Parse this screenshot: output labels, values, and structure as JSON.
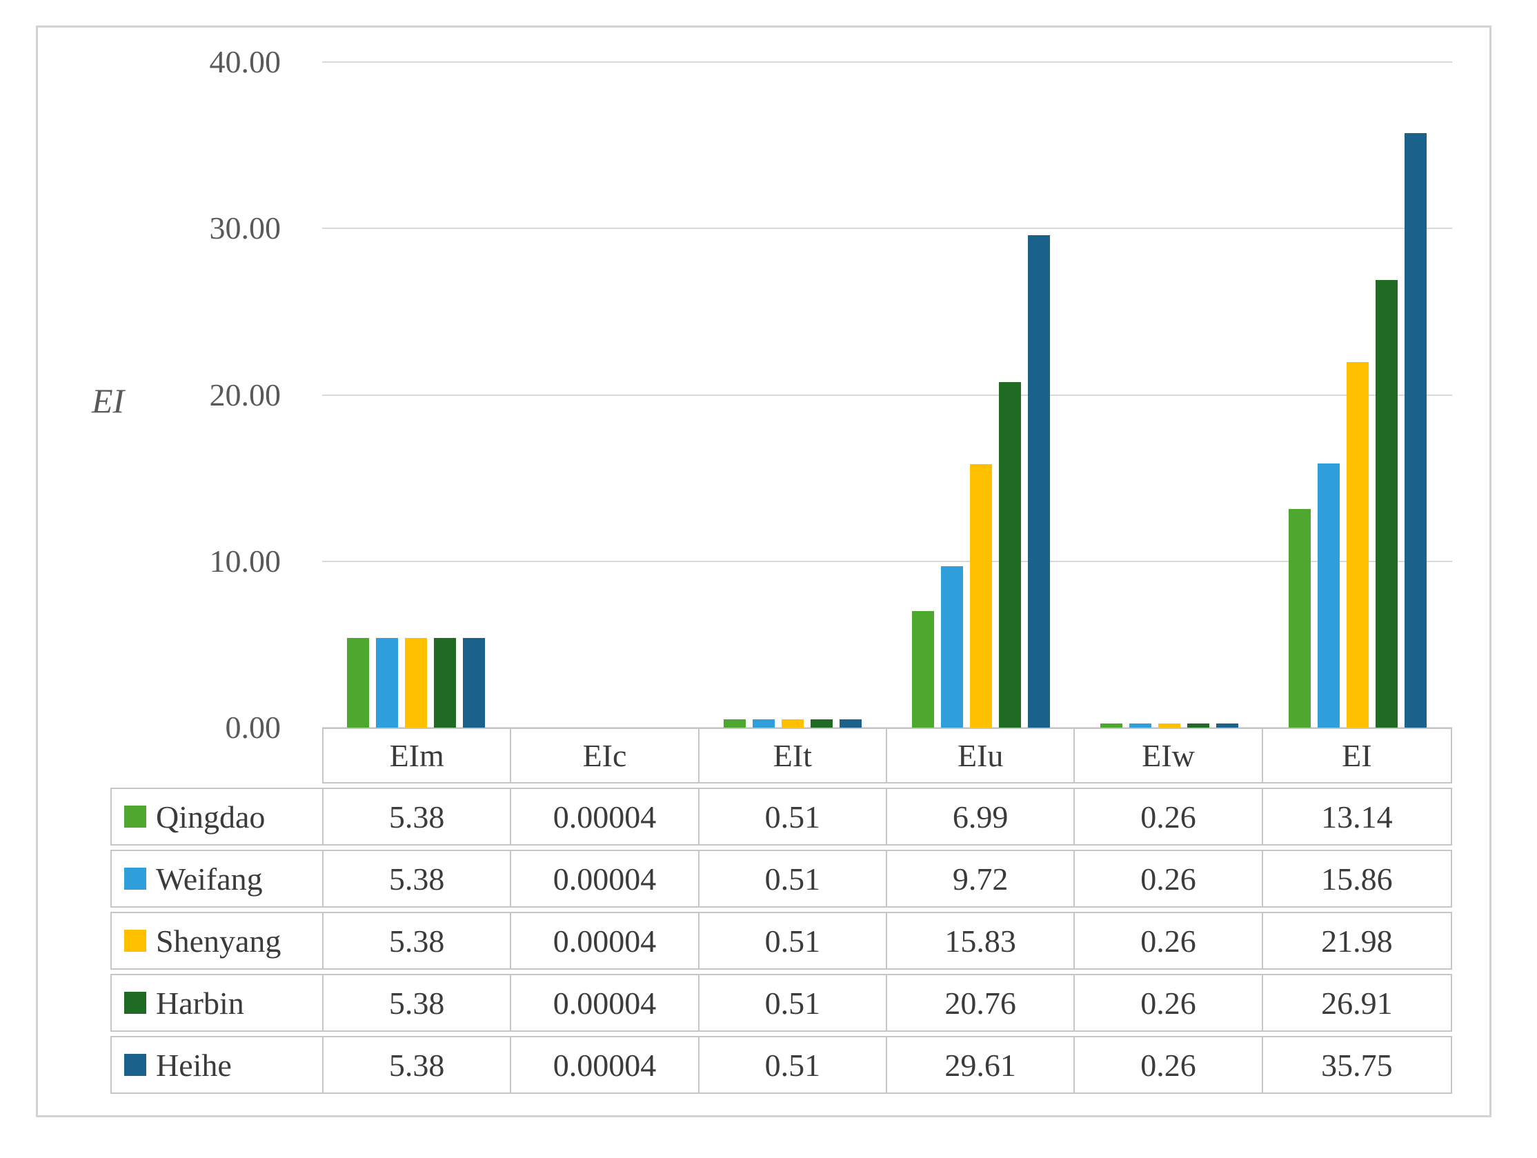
{
  "figure": {
    "y_axis_title": "EI",
    "y_ticks": [
      "40.00",
      "30.00",
      "20.00",
      "10.00",
      "0.00"
    ]
  },
  "chart_data": {
    "type": "bar",
    "title": "",
    "xlabel": "",
    "ylabel": "EI",
    "ylim": [
      0,
      40
    ],
    "grid": true,
    "legend_position": "table-left",
    "categories": [
      "EIm",
      "EIc",
      "EIt",
      "EIu",
      "EIw",
      "EI"
    ],
    "series": [
      {
        "name": "Qingdao",
        "color": "#4EA72E",
        "values": [
          5.38,
          4e-05,
          0.51,
          6.99,
          0.26,
          13.14
        ]
      },
      {
        "name": "Weifang",
        "color": "#2E9FDA",
        "values": [
          5.38,
          4e-05,
          0.51,
          9.72,
          0.26,
          15.86
        ]
      },
      {
        "name": "Shenyang",
        "color": "#FFC000",
        "values": [
          5.38,
          4e-05,
          0.51,
          15.83,
          0.26,
          21.98
        ]
      },
      {
        "name": "Harbin",
        "color": "#1F6B24",
        "values": [
          5.38,
          4e-05,
          0.51,
          20.76,
          0.26,
          26.91
        ]
      },
      {
        "name": "Heihe",
        "color": "#1A618C",
        "values": [
          5.38,
          4e-05,
          0.51,
          29.61,
          0.26,
          35.75
        ]
      }
    ]
  },
  "table": {
    "headers": [
      "EIm",
      "EIc",
      "EIt",
      "EIu",
      "EIw",
      "EI"
    ],
    "rows": [
      {
        "name": "Qingdao",
        "values": [
          "5.38",
          "0.00004",
          "0.51",
          "6.99",
          "0.26",
          "13.14"
        ]
      },
      {
        "name": "Weifang",
        "values": [
          "5.38",
          "0.00004",
          "0.51",
          "9.72",
          "0.26",
          "15.86"
        ]
      },
      {
        "name": "Shenyang",
        "values": [
          "5.38",
          "0.00004",
          "0.51",
          "15.83",
          "0.26",
          "21.98"
        ]
      },
      {
        "name": "Harbin",
        "values": [
          "5.38",
          "0.00004",
          "0.51",
          "20.76",
          "0.26",
          "26.91"
        ]
      },
      {
        "name": "Heihe",
        "values": [
          "5.38",
          "0.00004",
          "0.51",
          "29.61",
          "0.26",
          "35.75"
        ]
      }
    ]
  }
}
